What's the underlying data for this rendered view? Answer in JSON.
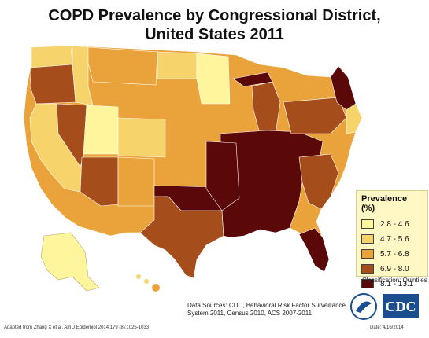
{
  "title_line1": "COPD Prevalence by Congressional District,",
  "title_line2": "United States 2011",
  "legend": {
    "title": "Prevalence (%)",
    "items": [
      {
        "label": "2.8 - 4.6",
        "color": "#fff59d"
      },
      {
        "label": "4.7 - 5.6",
        "color": "#f6d46b"
      },
      {
        "label": "5.7 - 6.8",
        "color": "#eaa33b"
      },
      {
        "label": "6.9 - 8.0",
        "color": "#a64d1c"
      },
      {
        "label": "8.1 - 13.1",
        "color": "#5a0808"
      }
    ]
  },
  "classification": "Classification: Quintiles",
  "data_sources": "Data Sources: CDC, Behavioral Risk Factor Surveillance System 2011, Census 2010, ACS 2007-2011",
  "adapted": "Adapted from Zhang X et al. Am J Epidemiol 2014;179 (8):1025-1033",
  "date": "Date: 4/16/2014",
  "logo_text": "CDC"
}
